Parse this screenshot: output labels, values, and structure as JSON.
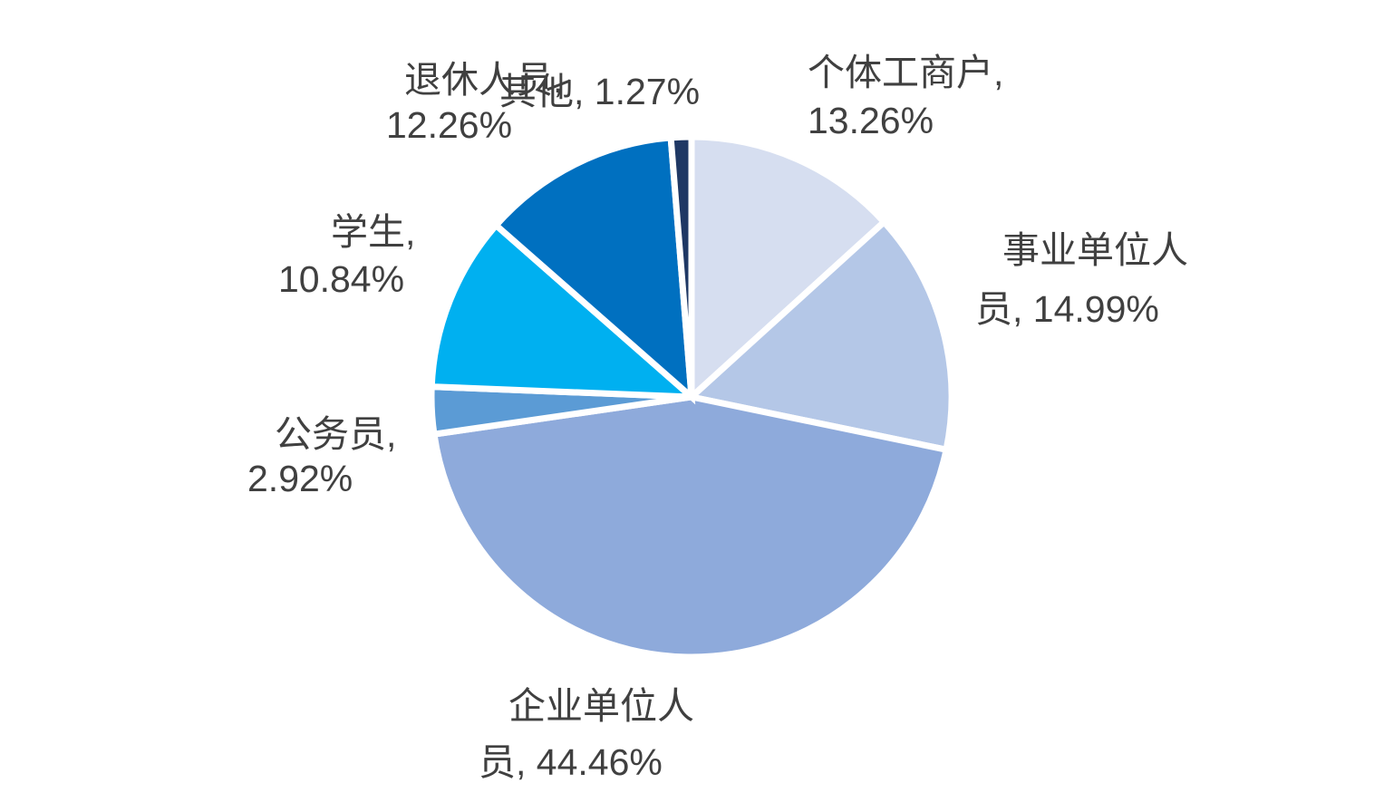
{
  "background_color": "#ffffff",
  "label_text_color": "#404040",
  "chart_data": {
    "type": "pie",
    "title": "",
    "legend_position": "none",
    "start_angle_deg": 0,
    "direction": "clockwise",
    "slice_border_color": "#ffffff",
    "label_format": "category, percent",
    "segments": [
      {
        "label": "个体工商户",
        "value": 13.26,
        "display": "个体工商户, 13.26%",
        "color": "#d6def0"
      },
      {
        "label": "事业单位人员",
        "value": 14.99,
        "display": "事业单位人员, 14.99%",
        "color": "#b4c7e7"
      },
      {
        "label": "企业单位人员",
        "value": 44.46,
        "display": "企业单位人员, 44.46%",
        "color": "#8eaadb"
      },
      {
        "label": "公务员",
        "value": 2.92,
        "display": "公务员, 2.92%",
        "color": "#5b9bd5"
      },
      {
        "label": "学生",
        "value": 10.84,
        "display": "学生, 10.84%",
        "color": "#00b0f0"
      },
      {
        "label": "退休人员",
        "value": 12.26,
        "display": "退休人员, 12.26%",
        "color": "#0070c0"
      },
      {
        "label": "其他",
        "value": 1.27,
        "display": "其他, 1.27%",
        "color": "#1f3864"
      }
    ]
  },
  "data_labels": {
    "individual_business": {
      "line1": "个体工商户,",
      "line2": "13.26%"
    },
    "public_institution": {
      "line1": "事业单位人",
      "line2": "员, 14.99%"
    },
    "enterprise": {
      "line1": "企业单位人",
      "line2": "员, 44.46%"
    },
    "civil_servant": {
      "line1": "公务员,",
      "line2": "2.92%"
    },
    "student": {
      "line1": "学生,",
      "line2": "10.84%"
    },
    "retired": {
      "line1": "退休人员,",
      "line2": "12.26%"
    },
    "other": {
      "line1": "其他, 1.27%"
    }
  }
}
